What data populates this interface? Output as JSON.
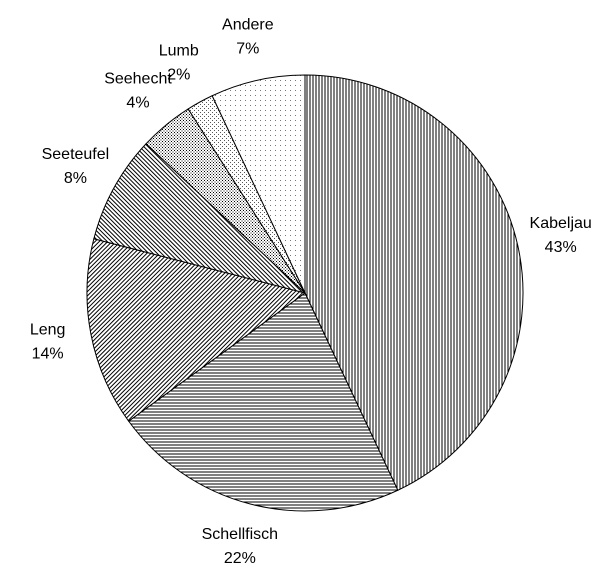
{
  "chart_data": {
    "type": "pie",
    "categories": [
      "Kabeljau",
      "Schellfisch",
      "Leng",
      "Seeteufel",
      "Seehecht",
      "Lumb",
      "Andere"
    ],
    "values": [
      43,
      22,
      14,
      8,
      4,
      2,
      7
    ],
    "value_labels": [
      "43%",
      "22%",
      "14%",
      "8%",
      "4%",
      "2%",
      "7%"
    ]
  }
}
